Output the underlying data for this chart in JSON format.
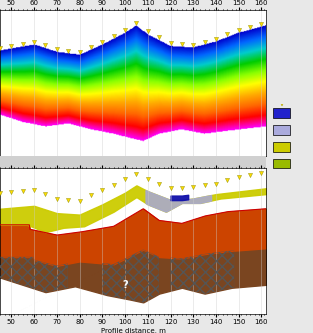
{
  "x_min": 45,
  "x_max": 162,
  "bottom_panel_xlabel": "Profile distance, m",
  "bg_color": "#e8e8e8",
  "grid_color": "#cccccc",
  "legend_colors": [
    "#2222cc",
    "#aaaadd",
    "#cccc00",
    "#99bb00"
  ],
  "seismic_colors": [
    "#ff00ff",
    "#ff0000",
    "#ff6600",
    "#ffaa00",
    "#ffff00",
    "#88ff00",
    "#00cc00",
    "#00cccc",
    "#0066ff",
    "#0000cc"
  ]
}
